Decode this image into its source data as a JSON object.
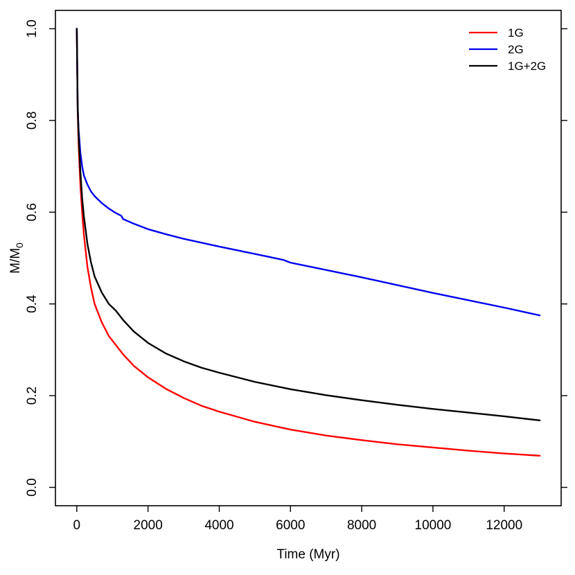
{
  "chart_data": {
    "type": "line",
    "title": "",
    "xlabel": "Time (Myr)",
    "ylabel": "M/M",
    "ylabel_subscript": "0",
    "xlim": [
      -600,
      13600
    ],
    "ylim": [
      -0.04,
      1.04
    ],
    "xticks": [
      0,
      2000,
      4000,
      6000,
      8000,
      10000,
      12000
    ],
    "yticks": [
      "0.0",
      "0.2",
      "0.4",
      "0.6",
      "0.8",
      "1.0"
    ],
    "grid": false,
    "legend_position": "top-right",
    "series": [
      {
        "name": "1G",
        "color": "#ff0000",
        "x": [
          0,
          25,
          50,
          100,
          150,
          200,
          300,
          400,
          500,
          700,
          900,
          1100,
          1300,
          1600,
          2000,
          2500,
          3000,
          3500,
          4000,
          5000,
          6000,
          7000,
          8000,
          9000,
          10000,
          11000,
          12000,
          13000
        ],
        "y": [
          1.0,
          0.82,
          0.75,
          0.66,
          0.6,
          0.55,
          0.48,
          0.435,
          0.4,
          0.36,
          0.33,
          0.31,
          0.29,
          0.265,
          0.24,
          0.215,
          0.195,
          0.178,
          0.165,
          0.143,
          0.126,
          0.113,
          0.103,
          0.094,
          0.087,
          0.08,
          0.074,
          0.069
        ]
      },
      {
        "name": "2G",
        "color": "#0000ee",
        "x": [
          0,
          25,
          50,
          100,
          150,
          200,
          300,
          400,
          500,
          700,
          900,
          1100,
          1250,
          1300,
          1600,
          2000,
          2500,
          3000,
          4000,
          5000,
          5800,
          6000,
          7000,
          8000,
          9000,
          10000,
          11000,
          12000,
          13000
        ],
        "y": [
          1.0,
          0.83,
          0.78,
          0.73,
          0.7,
          0.68,
          0.66,
          0.645,
          0.635,
          0.62,
          0.608,
          0.598,
          0.592,
          0.585,
          0.575,
          0.563,
          0.552,
          0.542,
          0.525,
          0.509,
          0.496,
          0.49,
          0.474,
          0.458,
          0.441,
          0.424,
          0.408,
          0.392,
          0.375
        ]
      },
      {
        "name": "1G+2G",
        "color": "#000000",
        "x": [
          0,
          25,
          50,
          100,
          150,
          200,
          300,
          400,
          500,
          700,
          900,
          1100,
          1300,
          1600,
          2000,
          2500,
          3000,
          3500,
          4000,
          5000,
          6000,
          7000,
          8000,
          9000,
          10000,
          11000,
          12000,
          13000
        ],
        "y": [
          1.0,
          0.83,
          0.77,
          0.69,
          0.63,
          0.59,
          0.53,
          0.49,
          0.46,
          0.425,
          0.4,
          0.385,
          0.365,
          0.34,
          0.315,
          0.292,
          0.275,
          0.261,
          0.25,
          0.23,
          0.214,
          0.201,
          0.19,
          0.18,
          0.171,
          0.163,
          0.155,
          0.146
        ]
      }
    ]
  }
}
